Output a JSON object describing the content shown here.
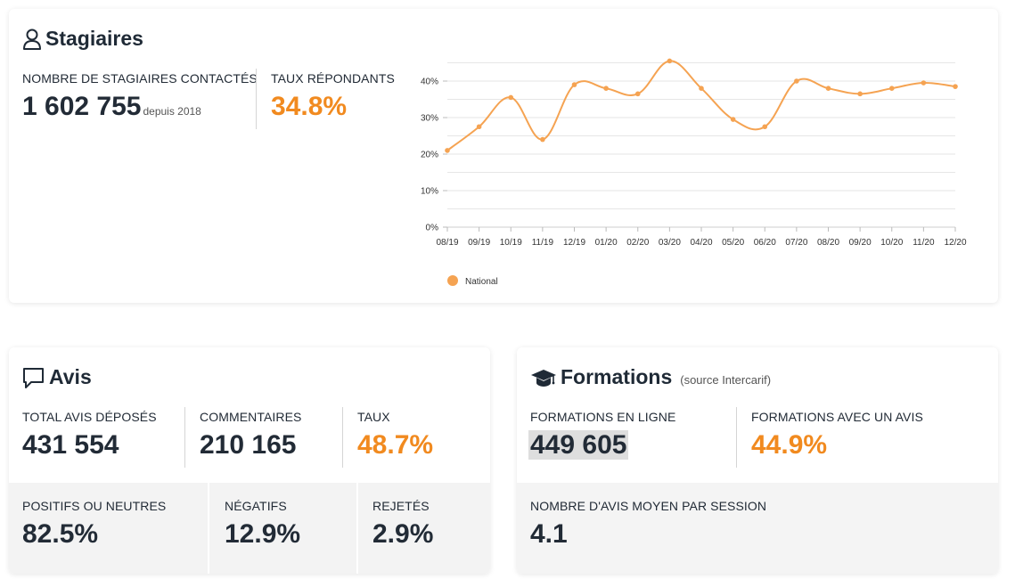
{
  "stagiaires": {
    "title": "Stagiaires",
    "contactes_label": "NOMBRE DE STAGIAIRES CONTACTÉS",
    "contactes_value": "1 602 755",
    "contactes_note": "depuis 2018",
    "taux_label": "TAUX RÉPONDANTS",
    "taux_value": "34.8%"
  },
  "avis": {
    "title": "Avis",
    "total_label": "TOTAL AVIS DÉPOSÉS",
    "total_value": "431 554",
    "commentaires_label": "COMMENTAIRES",
    "commentaires_value": "210 165",
    "taux_label": "TAUX",
    "taux_value": "48.7%",
    "positifs_label": "POSITIFS OU NEUTRES",
    "positifs_value": "82.5%",
    "negatifs_label": "NÉGATIFS",
    "negatifs_value": "12.9%",
    "rejetes_label": "REJETÉS",
    "rejetes_value": "2.9%"
  },
  "formations": {
    "title": "Formations",
    "source": "(source Intercarif)",
    "en_ligne_label": "FORMATIONS EN LIGNE",
    "en_ligne_value": "449 605",
    "avec_avis_label": "FORMATIONS AVEC UN AVIS",
    "avec_avis_value": "44.9%",
    "moyen_label": "NOMBRE D'AVIS MOYEN PAR SESSION",
    "moyen_value": "4.1"
  },
  "colors": {
    "accent": "#f18a1f",
    "text": "#222b36",
    "line": "#f5a352"
  },
  "icons": {
    "stagiaires": "user-outline-icon",
    "avis": "speech-bubble-icon",
    "formations": "graduation-cap-icon"
  },
  "chart_data": {
    "type": "line",
    "title": "",
    "xlabel": "",
    "ylabel": "",
    "categories": [
      "08/19",
      "09/19",
      "10/19",
      "11/19",
      "12/19",
      "01/20",
      "02/20",
      "03/20",
      "04/20",
      "05/20",
      "06/20",
      "07/20",
      "08/20",
      "09/20",
      "10/20",
      "11/20",
      "12/20"
    ],
    "series": [
      {
        "name": "National",
        "values": [
          21,
          27.5,
          35.5,
          24,
          39,
          38,
          36.5,
          45.5,
          38,
          29.5,
          27.5,
          40,
          38,
          36.5,
          38,
          39.5,
          38.5
        ]
      }
    ],
    "ylim": [
      0,
      45
    ],
    "yticks": [
      "0%",
      "10%",
      "20%",
      "30%",
      "40%"
    ],
    "grid": true,
    "legend": "bottom-left"
  }
}
